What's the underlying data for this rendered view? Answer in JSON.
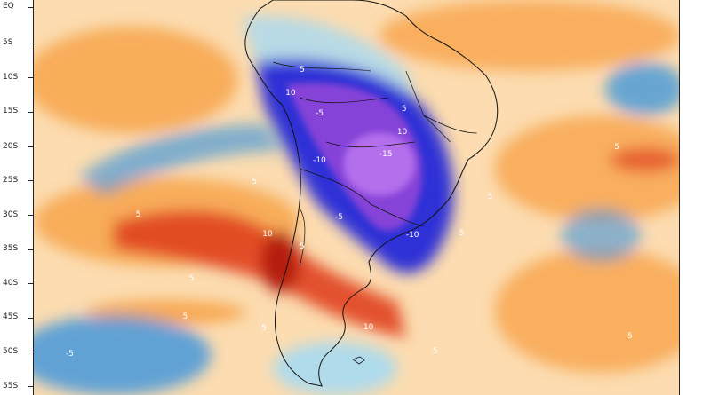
{
  "map": {
    "latitude_labels": [
      "EQ",
      "5S",
      "10S",
      "15S",
      "20S",
      "25S",
      "30S",
      "35S",
      "40S",
      "45S",
      "50S",
      "55S"
    ],
    "contour_labels": [
      "5",
      "5",
      "10",
      "10",
      "-5",
      "-5",
      "-10",
      "-10",
      "-15",
      "5",
      "5",
      "5",
      "5",
      "10",
      "5",
      "5",
      "5",
      "10",
      "5",
      "5",
      "-5",
      "5",
      "5"
    ],
    "colors": {
      "warm_light": "#fcdcb0",
      "warm_orange": "#f7a44a",
      "warm_red": "#e0401c",
      "warm_dark_red": "#b01a10",
      "cool_light": "#a6daf2",
      "cool_blue": "#2b8fe0",
      "cool_deep_blue": "#2227d8",
      "cool_purple": "#8b45d8",
      "cool_violet": "#c07bf2",
      "coastline": "#111111"
    }
  }
}
